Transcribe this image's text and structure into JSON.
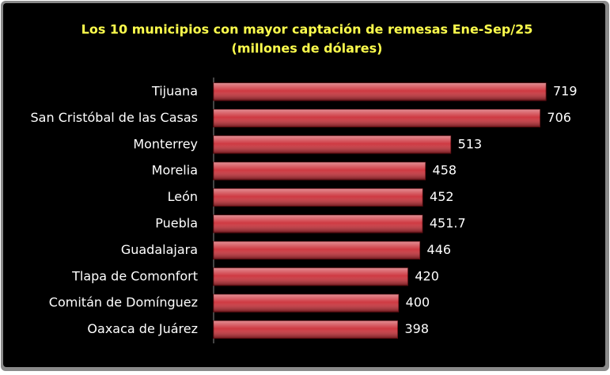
{
  "chart_data": {
    "type": "bar",
    "orientation": "horizontal",
    "title": "Los 10 municipios con mayor captación de remesas Ene-Sep/25",
    "subtitle": "(millones de dólares)",
    "categories": [
      "Tijuana",
      "San Cristóbal de las Casas",
      "Monterrey",
      "Morelia",
      "León",
      "Puebla",
      "Guadalajara",
      "Tlapa de Comonfort",
      "Comitán de Domínguez",
      "Oaxaca de Juárez"
    ],
    "values": [
      719,
      706,
      513,
      458,
      452,
      451.7,
      446,
      420,
      400,
      398
    ],
    "color": "#cc2f38"
  }
}
